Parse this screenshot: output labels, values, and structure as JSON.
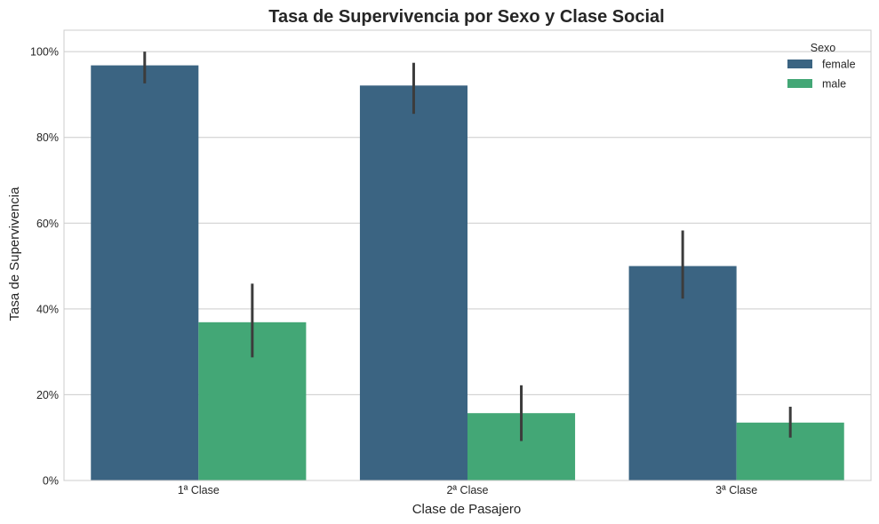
{
  "chart_data": {
    "type": "bar",
    "title": "Tasa de Supervivencia por Sexo y Clase Social",
    "xlabel": "Clase de Pasajero",
    "ylabel": "Tasa de Supervivencia",
    "categories": [
      "1ª Clase",
      "2ª Clase",
      "3ª Clase"
    ],
    "y_ticks": [
      0,
      0.2,
      0.4,
      0.6,
      0.8,
      1.0
    ],
    "y_tick_labels": [
      "0%",
      "20%",
      "40%",
      "60%",
      "80%",
      "100%"
    ],
    "ylim": [
      0,
      1.05
    ],
    "grid": "horizontal",
    "legend": {
      "title": "Sexo",
      "placement": "top-right"
    },
    "series": [
      {
        "name": "female",
        "color": "#3b6482",
        "values": [
          0.968,
          0.921,
          0.5
        ],
        "ci_low": [
          0.926,
          0.855,
          0.424
        ],
        "ci_high": [
          1.0,
          0.974,
          0.583
        ]
      },
      {
        "name": "male",
        "color": "#43a776",
        "values": [
          0.369,
          0.157,
          0.135
        ],
        "ci_low": [
          0.287,
          0.092,
          0.1
        ],
        "ci_high": [
          0.459,
          0.222,
          0.172
        ]
      }
    ]
  }
}
